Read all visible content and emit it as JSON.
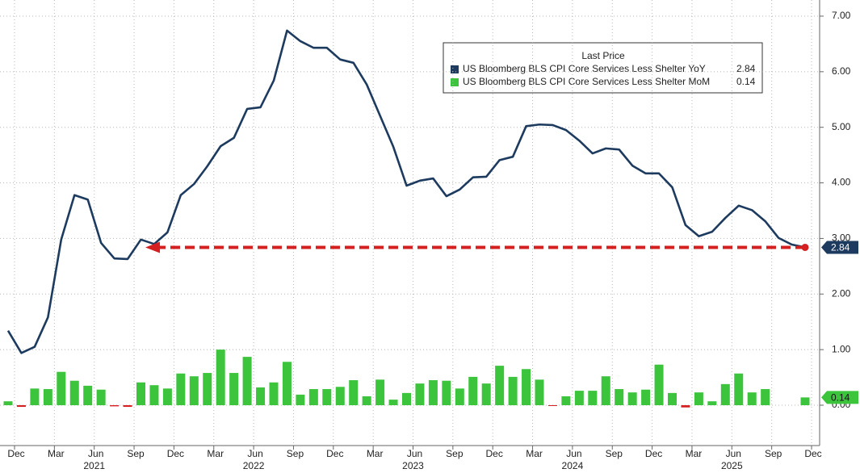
{
  "chart_data": {
    "type": "combo",
    "legend_title": "Last Price",
    "categories": [
      "Dec",
      null,
      null,
      "Mar",
      null,
      null,
      "Jun",
      null,
      null,
      "Sep",
      null,
      null,
      "Dec",
      null,
      null,
      "Mar",
      null,
      null,
      "Jun",
      null,
      null,
      "Sep",
      null,
      null,
      "Dec",
      null,
      null,
      "Mar",
      null,
      null,
      "Jun",
      null,
      null,
      "Sep",
      null,
      null,
      "Dec",
      null,
      null,
      "Mar",
      null,
      null,
      "Jun",
      null,
      null,
      "Sep",
      null,
      null,
      "Dec",
      null,
      null,
      "Mar",
      null,
      null,
      "Jun",
      null,
      null,
      "Sep",
      null,
      null,
      "Dec"
    ],
    "category_years": [
      null,
      null,
      null,
      null,
      null,
      null,
      "2021",
      null,
      null,
      null,
      null,
      null,
      null,
      null,
      null,
      null,
      null,
      null,
      "2022",
      null,
      null,
      null,
      null,
      null,
      null,
      null,
      null,
      null,
      null,
      null,
      "2023",
      null,
      null,
      null,
      null,
      null,
      null,
      null,
      null,
      null,
      null,
      null,
      "2024",
      null,
      null,
      null,
      null,
      null,
      null,
      null,
      null,
      null,
      null,
      null,
      "2025",
      null,
      null,
      null,
      null,
      null,
      null
    ],
    "series": [
      {
        "name": "US Bloomberg BLS CPI Core Services Less Shelter YoY",
        "type": "line",
        "color": "#1d3a5f",
        "values": [
          1.34,
          0.94,
          1.05,
          1.58,
          2.98,
          3.78,
          3.7,
          2.92,
          2.64,
          2.63,
          2.98,
          2.9,
          3.11,
          3.78,
          3.98,
          4.3,
          4.66,
          4.81,
          5.33,
          5.36,
          5.84,
          6.74,
          6.55,
          6.43,
          6.43,
          6.22,
          6.16,
          5.77,
          5.21,
          4.65,
          3.95,
          4.04,
          4.08,
          3.76,
          3.88,
          4.1,
          4.11,
          4.41,
          4.47,
          5.02,
          5.05,
          5.04,
          4.95,
          4.76,
          4.53,
          4.62,
          4.6,
          4.31,
          4.17,
          4.17,
          3.92,
          3.24,
          3.04,
          3.12,
          3.37,
          3.59,
          3.51,
          3.31,
          3.01,
          2.89,
          2.84
        ]
      },
      {
        "name": "US Bloomberg BLS CPI Core Services Less Shelter MoM",
        "type": "bar",
        "color": "#3cc43c",
        "negative_color": "#d42020",
        "values": [
          0.07,
          -0.03,
          0.3,
          0.29,
          0.6,
          0.44,
          0.35,
          0.28,
          -0.02,
          -0.03,
          0.41,
          0.36,
          0.3,
          0.57,
          0.52,
          0.58,
          1.0,
          0.58,
          0.87,
          0.32,
          0.41,
          0.78,
          0.19,
          0.29,
          0.29,
          0.33,
          0.45,
          0.16,
          0.46,
          0.1,
          0.22,
          0.39,
          0.45,
          0.44,
          0.3,
          0.51,
          0.39,
          0.71,
          0.51,
          0.65,
          0.46,
          -0.01,
          0.16,
          0.26,
          0.26,
          0.52,
          0.29,
          0.23,
          0.28,
          0.73,
          0.22,
          -0.04,
          0.23,
          0.07,
          0.38,
          0.57,
          0.23,
          0.29,
          null,
          null,
          0.14
        ]
      }
    ],
    "ylim": [
      -0.7,
      7.3
    ],
    "yticks": [
      {
        "value": 0,
        "label": "0.00"
      },
      {
        "value": 1,
        "label": "1.00"
      },
      {
        "value": 2,
        "label": "2.00"
      },
      {
        "value": 3,
        "label": "3.00"
      },
      {
        "value": 4,
        "label": "4.00"
      },
      {
        "value": 5,
        "label": "5.00"
      },
      {
        "value": 6,
        "label": "6.00"
      },
      {
        "value": 7,
        "label": "7.00"
      }
    ],
    "grid": true,
    "legend_position": "top-right"
  }
}
